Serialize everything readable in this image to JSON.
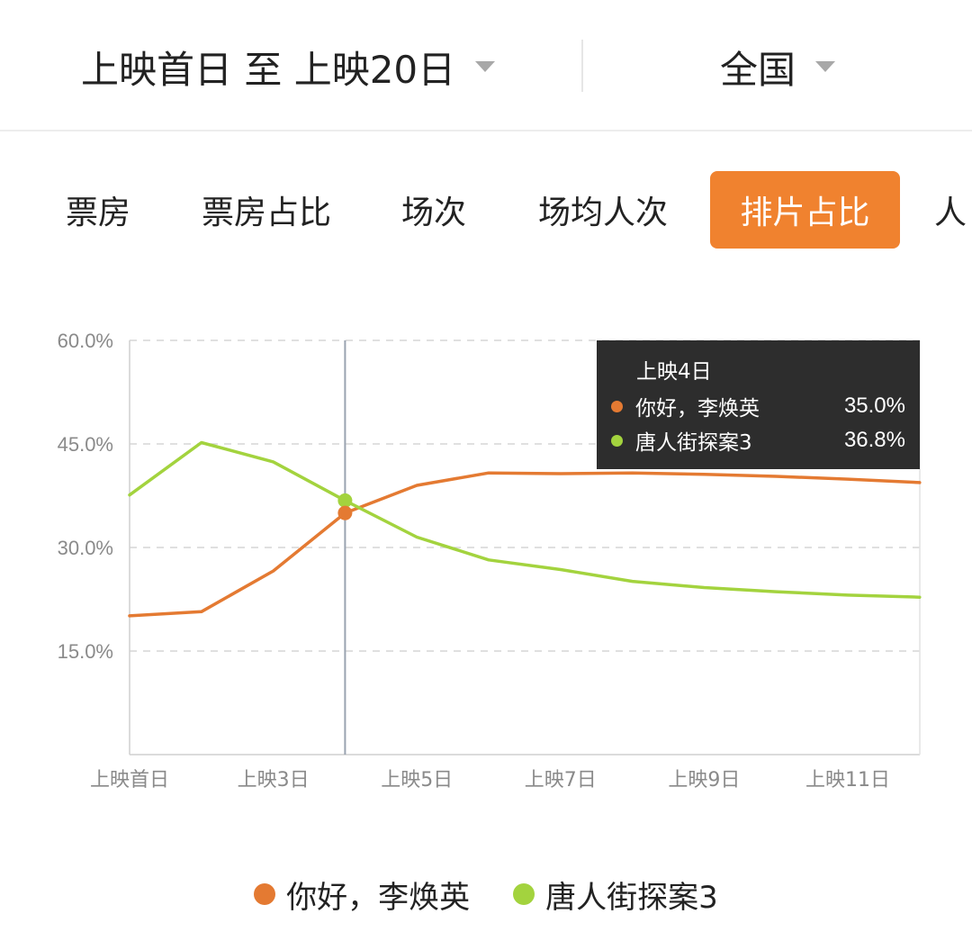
{
  "header": {
    "date_range": "上映首日 至 上映20日",
    "region": "全国"
  },
  "tabs": [
    {
      "label": "票房",
      "active": false
    },
    {
      "label": "票房占比",
      "active": false
    },
    {
      "label": "场次",
      "active": false
    },
    {
      "label": "场均人次",
      "active": false
    },
    {
      "label": "排片占比",
      "active": true
    },
    {
      "label": "人",
      "active": false
    }
  ],
  "tooltip": {
    "title": "上映4日",
    "rows": [
      {
        "name": "你好，李焕英",
        "value": "35.0%"
      },
      {
        "name": "唐人街探案3",
        "value": "36.8%"
      }
    ]
  },
  "colors": {
    "series_1": "#e47a32",
    "series_2": "#a3d33e",
    "accent": "#f0822f"
  },
  "chart_data": {
    "type": "line",
    "x": [
      "上映首日",
      "上映2日",
      "上映3日",
      "上映4日",
      "上映5日",
      "上映6日",
      "上映7日",
      "上映8日",
      "上映9日",
      "上映10日",
      "上映11日",
      "上映12日"
    ],
    "x_tick_labels": [
      "上映首日",
      "上映3日",
      "上映5日",
      "上映7日",
      "上映9日",
      "上映11日"
    ],
    "y_tick_labels": [
      "60.0%",
      "45.0%",
      "30.0%",
      "15.0%"
    ],
    "ylim": [
      0,
      60
    ],
    "yticks": [
      15,
      30,
      45,
      60
    ],
    "grid": true,
    "legend_position": "bottom",
    "highlight_index": 3,
    "series": [
      {
        "name": "你好，李焕英",
        "values": [
          20.1,
          20.7,
          26.6,
          35.0,
          39.0,
          40.8,
          40.7,
          40.8,
          40.6,
          40.3,
          39.9,
          39.4
        ]
      },
      {
        "name": "唐人街探案3",
        "values": [
          37.6,
          45.2,
          42.4,
          36.8,
          31.5,
          28.2,
          26.8,
          25.1,
          24.2,
          23.6,
          23.1,
          22.8
        ]
      }
    ]
  }
}
